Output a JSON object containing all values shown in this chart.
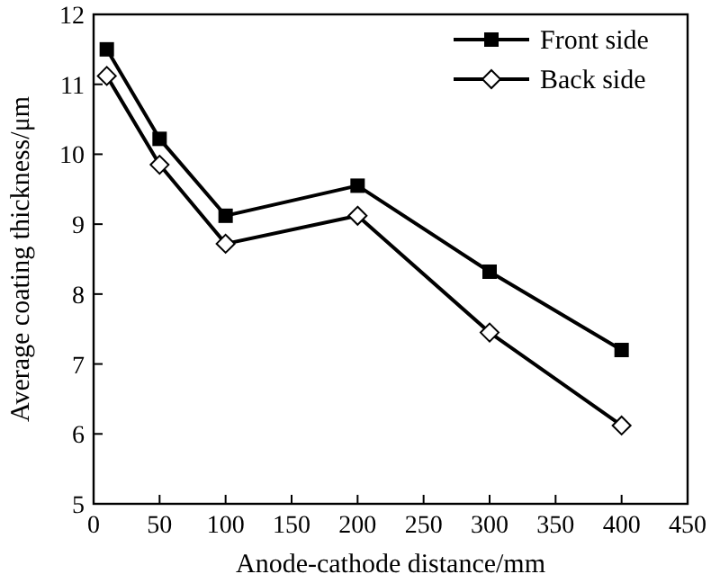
{
  "chart_data": {
    "type": "line",
    "xlabel": "Anode-cathode distance/mm",
    "ylabel": "Average coating thickness/μm",
    "x": [
      10,
      50,
      100,
      200,
      300,
      400
    ],
    "series": [
      {
        "name": "Front side",
        "color": "#000000",
        "marker": "square",
        "values": [
          11.5,
          10.22,
          9.12,
          9.55,
          8.32,
          7.2
        ]
      },
      {
        "name": "Back side",
        "color": "#000000",
        "marker": "diamond",
        "values": [
          11.12,
          9.85,
          8.72,
          9.12,
          7.45,
          6.12
        ]
      }
    ],
    "xlim": [
      0,
      450
    ],
    "xticks": [
      0,
      50,
      100,
      150,
      200,
      250,
      300,
      350,
      400,
      450
    ],
    "ylim": [
      5,
      12
    ],
    "yticks": [
      5,
      6,
      7,
      8,
      9,
      10,
      11,
      12
    ],
    "grid": false,
    "legend": "top right",
    "line_style": "solid"
  }
}
